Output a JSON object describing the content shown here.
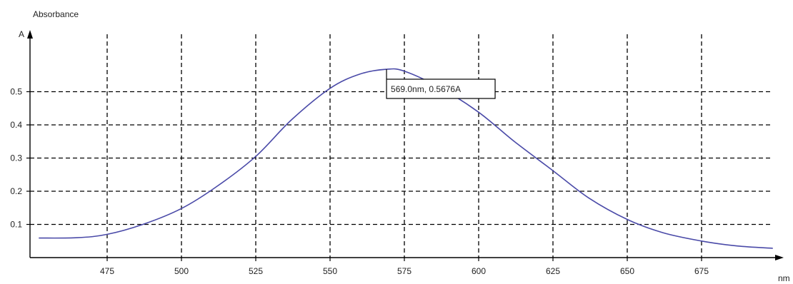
{
  "chart_data": {
    "type": "line",
    "ylabel_title": "Absorbance",
    "ylabel_unit": "A",
    "xlabel_unit": "nm",
    "xlim": [
      450,
      700
    ],
    "ylim": [
      0,
      0.62
    ],
    "x_ticks": [
      475,
      500,
      525,
      550,
      575,
      600,
      625,
      650,
      675
    ],
    "y_ticks": [
      0.1,
      0.2,
      0.3,
      0.4,
      0.5
    ],
    "x_tick_labels": [
      "475",
      "500",
      "525",
      "550",
      "575",
      "600",
      "625",
      "650",
      "675"
    ],
    "y_tick_labels": [
      "0.1",
      "0.2",
      "0.3",
      "0.4",
      "0.5"
    ],
    "grid": true,
    "grid_style": "dashed",
    "line_color": "#4a4aa8",
    "series": [
      {
        "x": [
          452,
          465,
          475,
          487,
          500,
          512,
          525,
          537,
          550,
          560,
          569,
          575,
          587,
          600,
          612,
          625,
          637,
          650,
          662,
          675,
          687,
          699
        ],
        "y": [
          0.059,
          0.06,
          0.07,
          0.1,
          0.148,
          0.215,
          0.305,
          0.415,
          0.51,
          0.553,
          0.5676,
          0.562,
          0.512,
          0.438,
          0.35,
          0.262,
          0.18,
          0.115,
          0.075,
          0.05,
          0.035,
          0.028
        ]
      }
    ],
    "annotation": {
      "x": 569.0,
      "y": 0.5676,
      "text": "569.0nm, 0.5676A"
    }
  }
}
